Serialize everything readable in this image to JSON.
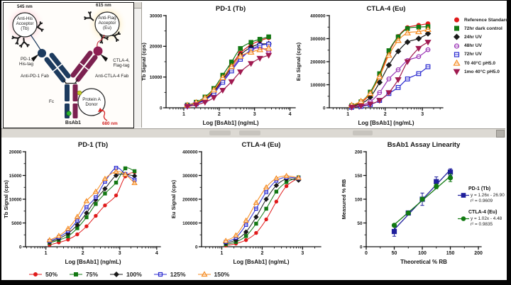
{
  "diagram": {
    "labels": {
      "nm545": "545 nm",
      "nm615": "615 nm",
      "nm680": "680 nm",
      "anti_his_l1": "Anti-His",
      "anti_his_l2": "Acceptor",
      "anti_his_l3": "(Tb)",
      "anti_flag_l1": "Anti-Flag",
      "anti_flag_l2": "Acceptor",
      "anti_flag_l3": "(Eu)",
      "pd1_tag_l1": "PD-1,",
      "pd1_tag_l2": "His-tag",
      "ctla4_tag_l1": "CTLA-4,",
      "ctla4_tag_l2": "Flag-tag",
      "anti_pd1_fab": "Anti-PD-1 Fab",
      "anti_ctla4_fab": "Anti-CTLA-4 Fab",
      "fc": "Fc",
      "protein_a_l1": "Protein A",
      "protein_a_l2": "Donor",
      "bsab1": "BsAb1"
    }
  },
  "chart_data": [
    {
      "id": "pd1_tb_top",
      "type": "line",
      "title": "PD-1 (Tb)",
      "xlabel": "Log [BsAb1] (ng/mL)",
      "ylabel": "Tb Signal (cps)",
      "xlim": [
        0.5,
        4.15
      ],
      "ylim": [
        0,
        30000
      ],
      "xticks": [
        1,
        2,
        3,
        4
      ],
      "yticks": [
        0,
        10000,
        20000,
        30000
      ],
      "xminor": "log",
      "yminor": "half",
      "x": [
        1.1,
        1.35,
        1.6,
        1.85,
        2.1,
        2.35,
        2.6,
        2.9,
        3.15,
        3.4
      ],
      "series": [
        {
          "name": "Reference Standard",
          "color": "#e01a1a",
          "marker": "circle",
          "open": false,
          "y": [
            700,
            1500,
            3000,
            5600,
            9600,
            13800,
            17800,
            20500,
            21800,
            22800
          ]
        },
        {
          "name": "72hr dark control",
          "color": "#137813",
          "marker": "square",
          "open": false,
          "y": [
            900,
            1800,
            3500,
            6300,
            10600,
            14900,
            19300,
            21300,
            22300,
            23100
          ]
        },
        {
          "name": "24hr UV",
          "color": "#1a1a1a",
          "marker": "diamond",
          "open": false,
          "y": [
            650,
            1400,
            2800,
            5200,
            9100,
            13200,
            17200,
            19700,
            20700,
            20800
          ]
        },
        {
          "name": "48hr UV",
          "color": "#9933b5",
          "marker": "circle",
          "open": true,
          "line_through": true,
          "y": [
            600,
            1300,
            2600,
            4900,
            8700,
            12500,
            16300,
            18600,
            19600,
            18300
          ]
        },
        {
          "name": "72hr UV",
          "color": "#2a2ad0",
          "marker": "square",
          "open": true,
          "line_through": true,
          "y": [
            600,
            1300,
            2500,
            4700,
            8300,
            12000,
            15800,
            18800,
            20300,
            20700
          ]
        },
        {
          "name": "T0 40°C pH5.0",
          "color": "#f58a1f",
          "marker": "triangle-up",
          "open": true,
          "line_through": true,
          "y": [
            800,
            1700,
            3200,
            5800,
            9800,
            13400,
            16800,
            18100,
            18900,
            19400
          ]
        },
        {
          "name": "1mo 40°C pH5.0",
          "color": "#a01a50",
          "marker": "triangle-down",
          "open": false,
          "y": [
            450,
            950,
            1800,
            3300,
            5700,
            8500,
            11700,
            14400,
            16100,
            17100
          ]
        }
      ]
    },
    {
      "id": "ctla4_eu_top",
      "type": "line",
      "title": "CTLA-4 (Eu)",
      "xlabel": "Log [BsAb1] (ng/mL)",
      "ylabel": "Eu Signal (cps)",
      "xlim": [
        0.5,
        3.55
      ],
      "ylim": [
        0,
        400000
      ],
      "xticks": [
        1,
        2,
        3
      ],
      "yticks": [
        0,
        100000,
        200000,
        300000,
        400000
      ],
      "xminor": "log",
      "yminor": "half",
      "x": [
        1.1,
        1.35,
        1.6,
        1.85,
        2.1,
        2.35,
        2.6,
        2.9,
        3.15
      ],
      "series": [
        {
          "name": "Reference Standard",
          "color": "#e01a1a",
          "marker": "circle",
          "open": false,
          "y": [
            6000,
            22000,
            62000,
            140000,
            240000,
            310000,
            348000,
            358000,
            365000
          ]
        },
        {
          "name": "72hr dark control",
          "color": "#137813",
          "marker": "square",
          "open": false,
          "y": [
            9000,
            26000,
            68000,
            148000,
            248000,
            308000,
            344000,
            350000,
            352000
          ]
        },
        {
          "name": "24hr UV",
          "color": "#1a1a1a",
          "marker": "diamond",
          "open": false,
          "y": [
            5000,
            18000,
            46000,
            110000,
            185000,
            245000,
            285000,
            300000,
            322000
          ]
        },
        {
          "name": "48hr UV",
          "color": "#9933b5",
          "marker": "circle",
          "open": true,
          "line_through": true,
          "y": [
            3000,
            10000,
            26000,
            66000,
            125000,
            165000,
            205000,
            222000,
            252000
          ]
        },
        {
          "name": "72hr UV",
          "color": "#2a2ad0",
          "marker": "square",
          "open": true,
          "line_through": true,
          "y": [
            2000,
            6000,
            14000,
            32000,
            62000,
            88000,
            125000,
            148000,
            178000
          ]
        },
        {
          "name": "T0 40°C pH5.0",
          "color": "#f58a1f",
          "marker": "triangle-up",
          "open": true,
          "line_through": true,
          "y": [
            11000,
            28000,
            62000,
            135000,
            228000,
            292000,
            325000,
            330000,
            340000
          ]
        },
        {
          "name": "1mo 40°C pH5.0",
          "color": "#a01a50",
          "marker": "triangle-down",
          "open": false,
          "y": [
            2500,
            8000,
            16000,
            32000,
            66000,
            122000,
            200000,
            258000,
            285000
          ]
        }
      ]
    },
    {
      "id": "pd1_tb_bottom",
      "type": "line",
      "title": "PD-1 (Tb)",
      "xlabel": "Log [BsAb1] (ng/mL)",
      "ylabel": "Tb Signal (cps)",
      "xlim": [
        0.45,
        4.1
      ],
      "ylim": [
        0,
        20000
      ],
      "xticks": [
        1,
        2,
        3,
        4
      ],
      "yticks": [
        0,
        5000,
        10000,
        15000,
        20000
      ],
      "xminor": "log",
      "yminor": "half",
      "x": [
        1.1,
        1.35,
        1.6,
        1.85,
        2.1,
        2.35,
        2.6,
        2.9,
        3.15,
        3.4
      ],
      "series": [
        {
          "name": "50%",
          "color": "#e01a1a",
          "marker": "circle",
          "open": false,
          "y": [
            400,
            900,
            1500,
            2600,
            4300,
            6500,
            8700,
            10800,
            14800,
            15700
          ]
        },
        {
          "name": "75%",
          "color": "#137813",
          "marker": "square",
          "open": false,
          "y": [
            800,
            1400,
            2200,
            3900,
            6200,
            9000,
            11200,
            13500,
            16500,
            15900
          ]
        },
        {
          "name": "100%",
          "color": "#1a1a1a",
          "marker": "diamond",
          "open": false,
          "y": [
            1000,
            1700,
            2800,
            4600,
            7100,
            9900,
            12200,
            15000,
            15200,
            14900
          ]
        },
        {
          "name": "125%",
          "color": "#2a2ad0",
          "marker": "square",
          "open": true,
          "line_through": true,
          "y": [
            1200,
            2000,
            3300,
            5500,
            8300,
            10400,
            13700,
            16600,
            15300,
            14100
          ]
        },
        {
          "name": "150%",
          "color": "#f58a1f",
          "marker": "triangle-up",
          "open": true,
          "line_through": true,
          "y": [
            1400,
            2300,
            3800,
            6300,
            9600,
            11600,
            14300,
            15800,
            15200,
            13400
          ]
        }
      ]
    },
    {
      "id": "ctla4_eu_bottom",
      "type": "line",
      "title": "CTLA-4 (Eu)",
      "xlabel": "Log [BsAb1] (ng/mL)",
      "ylabel": "Eu Signal (cps)",
      "xlim": [
        0.5,
        3.45
      ],
      "ylim": [
        0,
        400000
      ],
      "xticks": [
        1,
        2,
        3
      ],
      "yticks": [
        0,
        100000,
        200000,
        300000,
        400000
      ],
      "xminor": "log",
      "yminor": "half",
      "x": [
        1.1,
        1.35,
        1.6,
        1.85,
        2.1,
        2.35,
        2.6,
        2.9
      ],
      "series": [
        {
          "name": "50%",
          "color": "#e01a1a",
          "marker": "circle",
          "open": false,
          "y": [
            5000,
            13000,
            28000,
            58000,
            115000,
            190000,
            255000,
            290000
          ]
        },
        {
          "name": "75%",
          "color": "#137813",
          "marker": "square",
          "open": false,
          "y": [
            10000,
            20000,
            45000,
            97000,
            160000,
            232000,
            272000,
            292000
          ]
        },
        {
          "name": "100%",
          "color": "#1a1a1a",
          "marker": "diamond",
          "open": false,
          "y": [
            15000,
            28000,
            62000,
            125000,
            200000,
            258000,
            285000,
            280000
          ]
        },
        {
          "name": "125%",
          "color": "#2a2ad0",
          "marker": "square",
          "open": true,
          "line_through": true,
          "y": [
            20000,
            38000,
            92000,
            160000,
            230000,
            278000,
            292000,
            288000
          ]
        },
        {
          "name": "150%",
          "color": "#f58a1f",
          "marker": "triangle-up",
          "open": true,
          "line_through": true,
          "y": [
            25000,
            48000,
            110000,
            185000,
            250000,
            288000,
            298000,
            290000
          ]
        }
      ]
    },
    {
      "id": "linearity",
      "type": "scatter",
      "title": "BsAb1 Assay Linearity",
      "xlabel": "Theoretical % RB",
      "ylabel": "Measured % RB",
      "xlim": [
        0,
        205
      ],
      "ylim": [
        0,
        200
      ],
      "xticks": [
        0,
        50,
        100,
        150,
        200
      ],
      "yticks": [
        0,
        50,
        100,
        150,
        200
      ],
      "xminor": "step25",
      "yminor": "half",
      "x": [
        50,
        75,
        100,
        125,
        150
      ],
      "series": [
        {
          "name": "PD-1 (Tb)",
          "equation": "y = 1.26x - 26.90",
          "r2": "r² = 0.9609",
          "color": "#1f1f9c",
          "marker": "square",
          "open": false,
          "connect": false,
          "y": [
            32,
            71,
            100,
            137,
            157
          ],
          "err": [
            10,
            3,
            13,
            10,
            7
          ]
        },
        {
          "name": "CTLA-4 (Eu)",
          "equation": "y = 1.02x - 4.48",
          "r2": "r² = 0.9835",
          "color": "#117a11",
          "marker": "circle",
          "open": false,
          "connect": false,
          "y": [
            45,
            71,
            100,
            127,
            145
          ],
          "err": [
            3,
            2,
            4,
            5,
            8
          ]
        }
      ],
      "lines": [
        {
          "slope": 1.26,
          "intercept": -26.9,
          "x0": 47,
          "x1": 152,
          "color": "#1f1f9c"
        },
        {
          "slope": 1.02,
          "intercept": -4.48,
          "x0": 47,
          "x1": 152,
          "color": "#117a11"
        }
      ]
    }
  ]
}
